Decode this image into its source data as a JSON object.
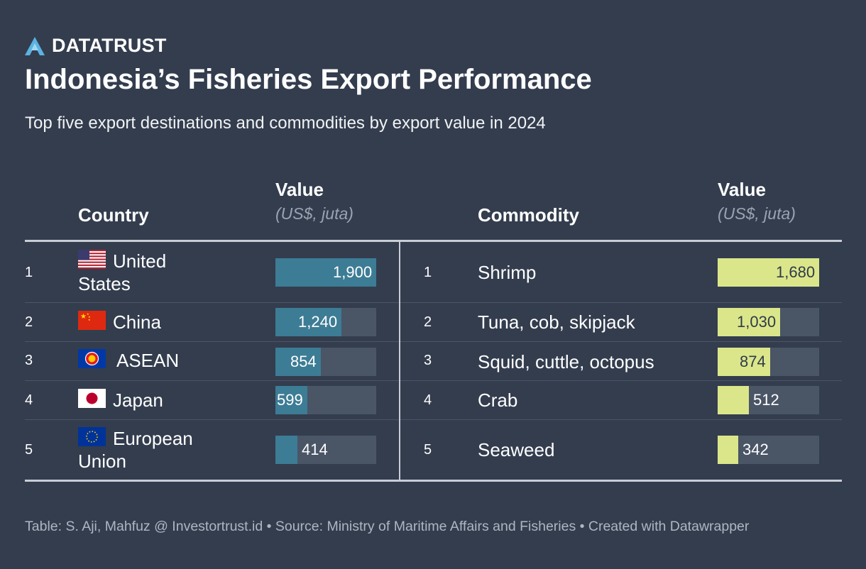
{
  "brand": {
    "name": "DATATRUST",
    "icon": "datatrust-logo-icon"
  },
  "title": "Indonesia’s Fisheries Export Performance",
  "subtitle": "Top five export destinations and commodities by export value in 2024",
  "colors": {
    "background": "#333d4e",
    "country_bar": "#3d7c95",
    "commodity_bar": "#dbe68a",
    "track": "#4a5566"
  },
  "headers": {
    "country": "Country",
    "value": "Value",
    "unit": "(US$, juta)",
    "commodity": "Commodity"
  },
  "countries": [
    {
      "rank": "1",
      "name": "United States",
      "flag": "us-flag-icon",
      "value_label": "1,900"
    },
    {
      "rank": "2",
      "name": "China",
      "flag": "china-flag-icon",
      "value_label": "1,240"
    },
    {
      "rank": "3",
      "name": "ASEAN",
      "flag": "asean-flag-icon",
      "value_label": "854"
    },
    {
      "rank": "4",
      "name": "Japan",
      "flag": "japan-flag-icon",
      "value_label": "599"
    },
    {
      "rank": "5",
      "name": "European Union",
      "flag": "eu-flag-icon",
      "value_label": "414"
    }
  ],
  "commodities": [
    {
      "rank": "1",
      "name": "Shrimp",
      "value_label": "1,680"
    },
    {
      "rank": "2",
      "name": "Tuna, cob, skipjack",
      "value_label": "1,030"
    },
    {
      "rank": "3",
      "name": "Squid, cuttle, octopus",
      "value_label": "874"
    },
    {
      "rank": "4",
      "name": "Crab",
      "value_label": "512"
    },
    {
      "rank": "5",
      "name": "Seaweed",
      "value_label": "342"
    }
  ],
  "chart_data": [
    {
      "type": "table",
      "title": "Top export destinations by export value in 2024",
      "categories": [
        "United States",
        "China",
        "ASEAN",
        "Japan",
        "European Union"
      ],
      "values": [
        1900,
        1240,
        854,
        599,
        414
      ],
      "max": 1900,
      "unit": "US$, juta"
    },
    {
      "type": "table",
      "title": "Top export commodities by export value in 2024",
      "categories": [
        "Shrimp",
        "Tuna, cob, skipjack",
        "Squid, cuttle, octopus",
        "Crab",
        "Seaweed"
      ],
      "values": [
        1680,
        1030,
        874,
        512,
        342
      ],
      "max": 1680,
      "unit": "US$, juta"
    }
  ],
  "footer": "Table: S. Aji, Mahfuz @ Investortrust.id • Source: Ministry of Maritime Affairs and Fisheries • Created with Datawrapper"
}
